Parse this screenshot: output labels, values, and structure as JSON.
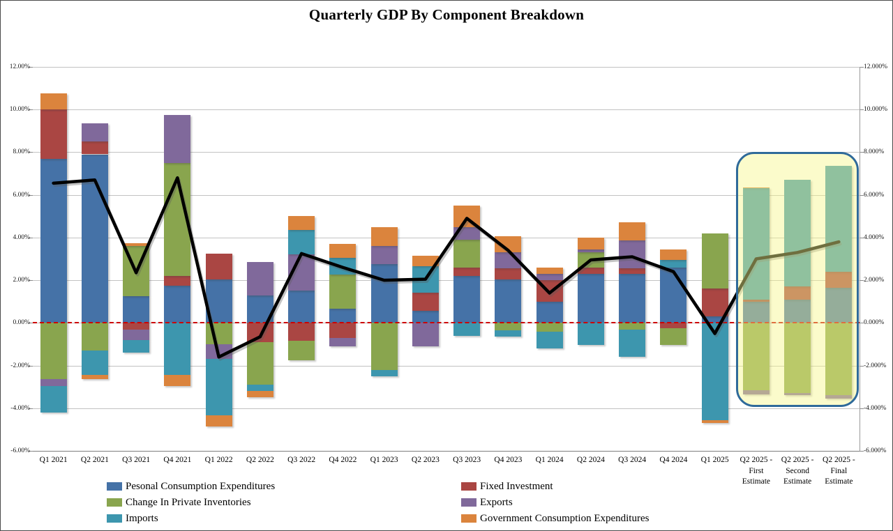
{
  "title": "Quarterly GDP By Component Breakdown",
  "chart_data": {
    "type": "bar",
    "subtype": "stacked-bars-with-line",
    "title": "Quarterly GDP By Component Breakdown",
    "xlabel": "",
    "ylabel": "",
    "ylim": [
      -6,
      12
    ],
    "grid": true,
    "legend_position": "bottom",
    "zero_line_color": "#cc0000",
    "gdp_line_color": "#000000",
    "y_axis_left_ticks": [
      "12.00%",
      "10.00%",
      "8.00%",
      "6.00%",
      "4.00%",
      "2.00%",
      "0.00%",
      "-2.00%",
      "-4.00%",
      "-6.00%"
    ],
    "y_axis_right_ticks": [
      "12.000%",
      "10.000%",
      "8.000%",
      "6.000%",
      "4.000%",
      "2.000%",
      "0.000%",
      "-2.000%",
      "-4.000%",
      "-6.000%"
    ],
    "categories": [
      "Q1 2021",
      "Q2 2021",
      "Q3 2021",
      "Q4 2021",
      "Q1 2022",
      "Q2 2022",
      "Q3 2022",
      "Q4 2022",
      "Q1 2023",
      "Q2 2023",
      "Q3 2023",
      "Q4 2023",
      "Q1 2024",
      "Q2 2024",
      "Q3 2024",
      "Q4 2024",
      "Q1 2025",
      "Q2 2025 - First Estimate",
      "Q2 2025 - Second Estimate",
      "Q2 2025 - Final Estimate"
    ],
    "categories_display": [
      [
        "Q1 2021"
      ],
      [
        "Q2 2021"
      ],
      [
        "Q3 2021"
      ],
      [
        "Q4 2021"
      ],
      [
        "Q1 2022"
      ],
      [
        "Q2 2022"
      ],
      [
        "Q3 2022"
      ],
      [
        "Q4 2022"
      ],
      [
        "Q1 2023"
      ],
      [
        "Q2 2023"
      ],
      [
        "Q3 2023"
      ],
      [
        "Q4 2023"
      ],
      [
        "Q1 2024"
      ],
      [
        "Q2 2024"
      ],
      [
        "Q3 2024"
      ],
      [
        "Q4 2024"
      ],
      [
        "Q1 2025"
      ],
      [
        "Q2 2025 -",
        "First",
        "Estimate"
      ],
      [
        "Q2 2025 -",
        "Second",
        "Estimate"
      ],
      [
        "Q2 2025 -",
        "Final",
        "Estimate"
      ]
    ],
    "series": [
      {
        "name": "Pesonal Consumption Expenditures",
        "color": "#4572a7",
        "values": [
          7.7,
          7.9,
          1.25,
          1.75,
          2.05,
          1.3,
          1.5,
          0.65,
          2.75,
          0.55,
          2.2,
          2.05,
          1.0,
          2.3,
          2.3,
          2.6,
          0.3,
          1.0,
          1.1,
          1.65
        ]
      },
      {
        "name": "Fixed Investment",
        "color": "#aa4643",
        "values": [
          2.3,
          0.6,
          -0.3,
          0.45,
          1.2,
          -0.9,
          -0.85,
          -0.7,
          0.0,
          0.85,
          0.4,
          0.5,
          1.0,
          0.3,
          0.25,
          -0.25,
          1.3,
          0.1,
          0.6,
          0.75
        ]
      },
      {
        "name": "Change In Private Inventories",
        "color": "#89a54e",
        "values": [
          -2.65,
          -1.3,
          2.35,
          5.3,
          -1.0,
          -2.0,
          -0.9,
          1.6,
          -2.2,
          0.0,
          1.3,
          -0.35,
          -0.4,
          0.7,
          -0.3,
          -0.8,
          2.6,
          -3.15,
          -3.3,
          -3.4
        ]
      },
      {
        "name": "Exports",
        "color": "#80699b",
        "values": [
          -0.3,
          0.85,
          -0.5,
          2.25,
          -0.7,
          1.55,
          1.7,
          -0.4,
          0.85,
          -1.1,
          0.6,
          0.75,
          0.3,
          0.15,
          1.3,
          0.0,
          0.0,
          -0.2,
          -0.1,
          -0.15
        ]
      },
      {
        "name": "Imports",
        "color": "#3d96ae",
        "values": [
          -1.25,
          -1.15,
          -0.6,
          -2.45,
          -2.65,
          -0.3,
          1.15,
          0.8,
          -0.3,
          1.25,
          -0.6,
          -0.3,
          -0.8,
          -1.05,
          -1.3,
          0.35,
          -4.55,
          5.2,
          5.0,
          4.95
        ]
      },
      {
        "name": "Government Consumption Expenditures",
        "color": "#db843d",
        "values": [
          0.75,
          -0.2,
          0.15,
          -0.5,
          -0.5,
          -0.3,
          0.65,
          0.65,
          0.9,
          0.5,
          1.0,
          0.75,
          0.3,
          0.55,
          0.85,
          0.5,
          -0.15,
          0.05,
          0.0,
          0.0
        ]
      }
    ],
    "line_series": {
      "name": "Real GDP (total)",
      "color": "#000000",
      "values": [
        6.55,
        6.7,
        2.35,
        6.8,
        -1.6,
        -0.65,
        3.25,
        2.6,
        2.0,
        2.05,
        4.9,
        3.4,
        1.4,
        2.95,
        3.1,
        2.4,
        -0.5,
        3.0,
        3.3,
        3.8
      ]
    },
    "highlight": {
      "from_category": "Q2 2025 - First Estimate",
      "to_category": "Q2 2025 - Final Estimate",
      "fill": "#f6f68c",
      "border": "#2f6a9a"
    }
  }
}
